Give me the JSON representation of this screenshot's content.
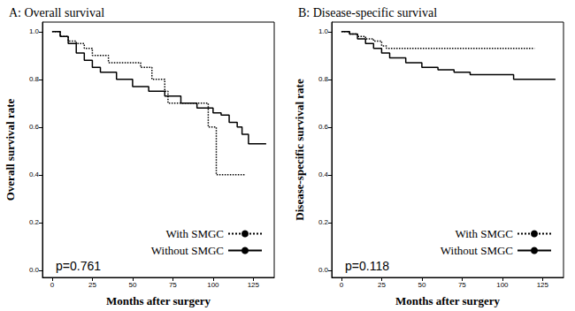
{
  "chart_data": [
    {
      "type": "line",
      "title": "A: Overall survival",
      "xlabel": "Months after surgery",
      "ylabel": "Overall survival rate",
      "annotations": [
        "p=0.761"
      ],
      "xlim": [
        -6,
        138
      ],
      "xticks": [
        0,
        25,
        50,
        75,
        100,
        125
      ],
      "ylim": [
        -0.03,
        1.04
      ],
      "yticks": [
        {
          "value": 0,
          "label": "0.0"
        },
        {
          "value": 0.2,
          "label": "0.2"
        },
        {
          "value": 0.4,
          "label": "0.4"
        },
        {
          "value": 0.6,
          "label": "0.6"
        },
        {
          "value": 0.8,
          "label": "0.8"
        },
        {
          "value": 1,
          "label": "1.0"
        }
      ],
      "grid": false,
      "legend": "lower right",
      "series": [
        {
          "name": "With SMGC",
          "color": "#000000",
          "line_style": "dotted",
          "x": [
            0,
            5,
            10,
            15,
            20,
            25,
            35,
            55,
            62,
            70,
            72,
            97,
            102,
            120
          ],
          "values": [
            1.0,
            0.98,
            0.96,
            0.95,
            0.93,
            0.9,
            0.87,
            0.85,
            0.8,
            0.75,
            0.7,
            0.6,
            0.4,
            0.4
          ]
        },
        {
          "name": "Without SMGC",
          "color": "#000000",
          "line_style": "solid",
          "x": [
            0,
            5,
            10,
            15,
            20,
            25,
            30,
            40,
            50,
            60,
            70,
            80,
            90,
            100,
            105,
            110,
            115,
            118,
            122,
            133
          ],
          "values": [
            1.0,
            0.98,
            0.95,
            0.91,
            0.88,
            0.85,
            0.83,
            0.8,
            0.77,
            0.75,
            0.73,
            0.7,
            0.68,
            0.66,
            0.65,
            0.62,
            0.6,
            0.57,
            0.53,
            0.53
          ]
        }
      ]
    },
    {
      "type": "line",
      "title": "B: Disease-specific survival",
      "xlabel": "Months after surgery",
      "ylabel": "Disease-specific survival rate",
      "annotations": [
        "p=0.118"
      ],
      "xlim": [
        -6,
        138
      ],
      "xticks": [
        0,
        25,
        50,
        75,
        100,
        125
      ],
      "ylim": [
        -0.03,
        1.04
      ],
      "yticks": [
        {
          "value": 0,
          "label": "0.0"
        },
        {
          "value": 0.2,
          "label": "0.2"
        },
        {
          "value": 0.4,
          "label": "0.4"
        },
        {
          "value": 0.6,
          "label": "0.6"
        },
        {
          "value": 0.8,
          "label": "0.8"
        },
        {
          "value": 1,
          "label": "1.0"
        }
      ],
      "grid": false,
      "legend": "lower right",
      "series": [
        {
          "name": "With SMGC",
          "color": "#000000",
          "line_style": "dotted",
          "x": [
            0,
            5,
            10,
            15,
            20,
            25,
            28,
            120
          ],
          "values": [
            1.0,
            0.99,
            0.98,
            0.97,
            0.96,
            0.94,
            0.93,
            0.93
          ]
        },
        {
          "name": "Without SMGC",
          "color": "#000000",
          "line_style": "solid",
          "x": [
            0,
            5,
            10,
            15,
            20,
            25,
            30,
            40,
            50,
            60,
            70,
            80,
            107,
            133
          ],
          "values": [
            1.0,
            0.99,
            0.97,
            0.95,
            0.93,
            0.91,
            0.89,
            0.87,
            0.85,
            0.84,
            0.83,
            0.82,
            0.8,
            0.8
          ]
        }
      ]
    }
  ]
}
